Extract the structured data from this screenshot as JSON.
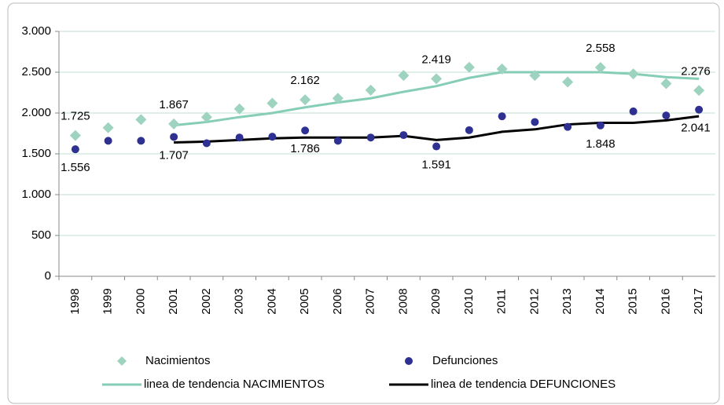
{
  "chart_data": {
    "type": "line",
    "categories": [
      "1998",
      "1999",
      "2000",
      "2001",
      "2002",
      "2003",
      "2004",
      "2005",
      "2006",
      "2007",
      "2008",
      "2009",
      "2010",
      "2011",
      "2012",
      "2013",
      "2014",
      "2015",
      "2016",
      "2017"
    ],
    "series": [
      {
        "name": "Nacimientos",
        "color": "#9dd3bf",
        "marker": "diamond",
        "values": [
          1725,
          1820,
          1920,
          1867,
          1950,
          2050,
          2120,
          2162,
          2180,
          2280,
          2460,
          2419,
          2560,
          2540,
          2460,
          2380,
          2558,
          2480,
          2360,
          2276
        ],
        "value_labels": [
          "1.725",
          null,
          null,
          "1.867",
          null,
          null,
          null,
          "2.162",
          null,
          null,
          null,
          "2.419",
          null,
          null,
          null,
          null,
          "2.558",
          null,
          null,
          "2.276"
        ]
      },
      {
        "name": "Defunciones",
        "color": "#2e3192",
        "marker": "circle",
        "values": [
          1556,
          1660,
          1660,
          1707,
          1630,
          1700,
          1710,
          1786,
          1660,
          1700,
          1730,
          1591,
          1790,
          1960,
          1890,
          1830,
          1848,
          2020,
          1970,
          2041
        ],
        "value_labels": [
          "1.556",
          null,
          null,
          "1.707",
          null,
          null,
          null,
          "1.786",
          null,
          null,
          null,
          "1.591",
          null,
          null,
          null,
          null,
          "1.848",
          null,
          null,
          "2.041"
        ]
      },
      {
        "name": "linea de tendencia NACIMIENTOS",
        "color": "#86cdb8",
        "marker": "line",
        "values": [
          null,
          null,
          null,
          1850,
          1890,
          1950,
          2000,
          2070,
          2130,
          2180,
          2260,
          2330,
          2430,
          2500,
          2500,
          2500,
          2500,
          2480,
          2440,
          2420
        ]
      },
      {
        "name": "linea de tendencia DEFUNCIONES",
        "color": "#000000",
        "marker": "line",
        "values": [
          null,
          null,
          null,
          1640,
          1650,
          1670,
          1690,
          1700,
          1700,
          1700,
          1720,
          1670,
          1700,
          1770,
          1800,
          1860,
          1880,
          1880,
          1910,
          1960
        ]
      }
    ],
    "ylim": [
      0,
      3000
    ],
    "yticks": [
      0,
      500,
      {
        "value": 1000,
        "label": "1.000"
      },
      {
        "value": 1500,
        "label": "1.500"
      },
      {
        "value": 2000,
        "label": "2.000"
      },
      {
        "value": 2500,
        "label": "2.500"
      },
      {
        "value": 3000,
        "label": "3.000"
      }
    ],
    "grid": true
  }
}
